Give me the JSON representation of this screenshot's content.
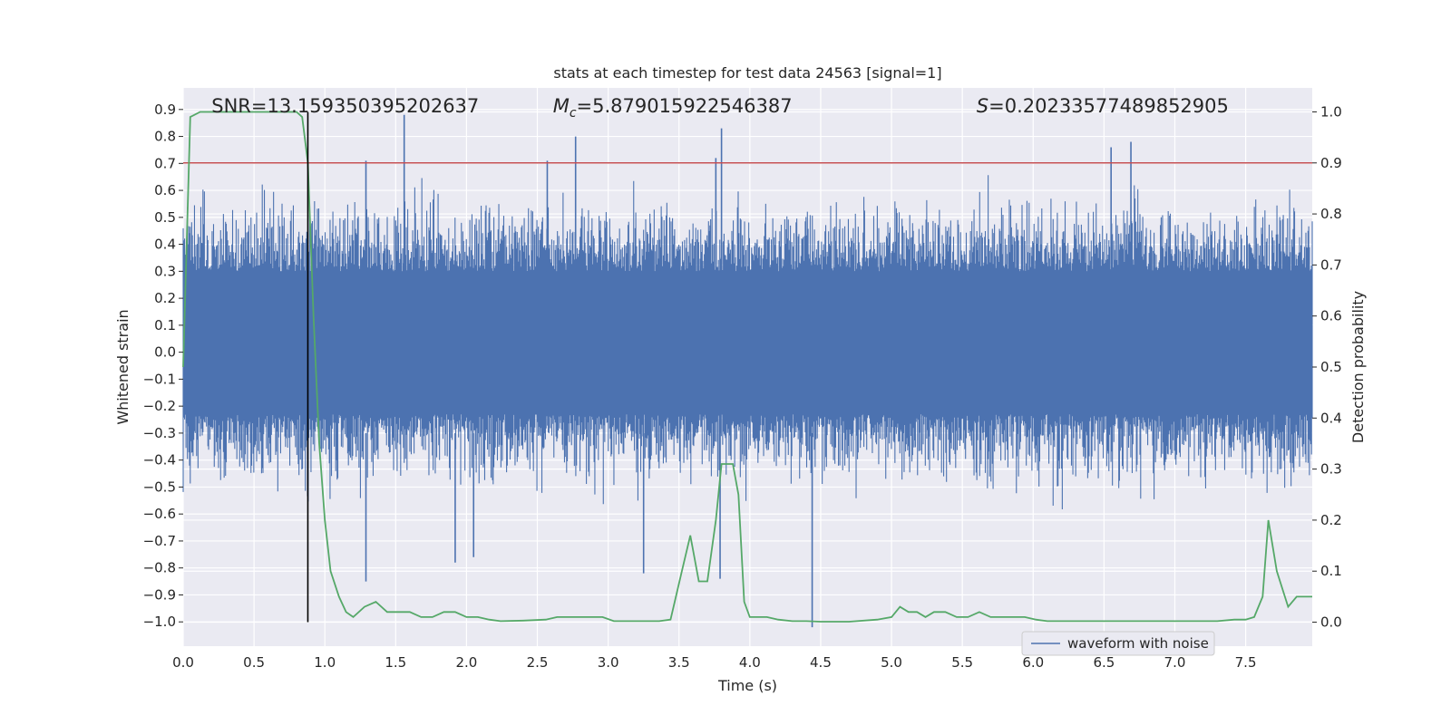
{
  "chart_data": {
    "type": "line",
    "title": "stats at each timestep for test data 24563 [signal=1]",
    "xlabel": "Time (s)",
    "ylabel": "Whitened strain",
    "y2label": "Detection probability",
    "xlim": [
      0.0,
      7.97
    ],
    "ylim": [
      -1.09,
      0.98
    ],
    "y2lim": [
      -0.047,
      1.047
    ],
    "xticks": [
      "0.0",
      "0.5",
      "1.0",
      "1.5",
      "2.0",
      "2.5",
      "3.0",
      "3.5",
      "4.0",
      "4.5",
      "5.0",
      "5.5",
      "6.0",
      "6.5",
      "7.0",
      "7.5"
    ],
    "xtick_values": [
      0.0,
      0.5,
      1.0,
      1.5,
      2.0,
      2.5,
      3.0,
      3.5,
      4.0,
      4.5,
      5.0,
      5.5,
      6.0,
      6.5,
      7.0,
      7.5
    ],
    "yticks": [
      "0.9",
      "0.8",
      "0.7",
      "0.6",
      "0.5",
      "0.4",
      "0.3",
      "0.2",
      "0.1",
      "0.0",
      "−0.1",
      "−0.2",
      "−0.3",
      "−0.4",
      "−0.5",
      "−0.6",
      "−0.7",
      "−0.8",
      "−0.9",
      "−1.0"
    ],
    "ytick_values": [
      0.9,
      0.8,
      0.7,
      0.6,
      0.5,
      0.4,
      0.3,
      0.2,
      0.1,
      0.0,
      -0.1,
      -0.2,
      -0.3,
      -0.4,
      -0.5,
      -0.6,
      -0.7,
      -0.8,
      -0.9,
      -1.0
    ],
    "y2ticks": [
      "1.0",
      "0.9",
      "0.8",
      "0.7",
      "0.6",
      "0.5",
      "0.4",
      "0.3",
      "0.2",
      "0.1",
      "0.0"
    ],
    "y2tick_values": [
      1.0,
      0.9,
      0.8,
      0.7,
      0.6,
      0.5,
      0.4,
      0.3,
      0.2,
      0.1,
      0.0
    ],
    "annotations": {
      "snr": "SNR=13.159350395202637",
      "mc_symbol": "M",
      "mc_sub": "c",
      "mc_value": "=5.879015922546387",
      "s_symbol": "S",
      "s_value": "=0.20233577489852905"
    },
    "threshold": {
      "value": 0.9,
      "axis": "right",
      "color": "#c44e52"
    },
    "detection_time": {
      "x": 0.88,
      "color": "#000000"
    },
    "series": [
      {
        "name": "waveform with noise",
        "axis": "left",
        "color": "#4c72b0",
        "kind": "noise",
        "envelope_upper": [
          0.3,
          0.33
        ],
        "envelope_lower": [
          -0.23,
          -0.26
        ],
        "peaks": [
          {
            "x": 1.29,
            "y": 0.71
          },
          {
            "x": 1.56,
            "y": 0.88
          },
          {
            "x": 2.77,
            "y": 0.8
          },
          {
            "x": 3.8,
            "y": 0.83
          },
          {
            "x": 3.76,
            "y": 0.72
          },
          {
            "x": 6.69,
            "y": 0.78
          },
          {
            "x": 6.55,
            "y": 0.76
          },
          {
            "x": 2.57,
            "y": 0.71
          }
        ],
        "troughs": [
          {
            "x": 1.29,
            "y": -0.85
          },
          {
            "x": 4.44,
            "y": -1.02
          },
          {
            "x": 3.25,
            "y": -0.82
          },
          {
            "x": 3.79,
            "y": -0.84
          },
          {
            "x": 1.92,
            "y": -0.78
          },
          {
            "x": 2.05,
            "y": -0.76
          }
        ]
      },
      {
        "name": "detection probability",
        "axis": "right",
        "color": "#55a868",
        "x": [
          0.0,
          0.05,
          0.12,
          0.2,
          0.3,
          0.4,
          0.5,
          0.6,
          0.7,
          0.8,
          0.84,
          0.88,
          0.92,
          0.96,
          1.0,
          1.04,
          1.1,
          1.15,
          1.2,
          1.28,
          1.36,
          1.44,
          1.52,
          1.6,
          1.68,
          1.76,
          1.84,
          1.92,
          2.0,
          2.08,
          2.16,
          2.24,
          2.4,
          2.56,
          2.64,
          2.72,
          2.8,
          2.88,
          2.96,
          3.04,
          3.2,
          3.36,
          3.44,
          3.52,
          3.58,
          3.64,
          3.7,
          3.76,
          3.8,
          3.84,
          3.88,
          3.92,
          3.96,
          4.0,
          4.05,
          4.12,
          4.2,
          4.3,
          4.4,
          4.5,
          4.7,
          4.9,
          5.0,
          5.06,
          5.12,
          5.18,
          5.24,
          5.3,
          5.38,
          5.46,
          5.54,
          5.62,
          5.7,
          5.8,
          5.86,
          5.94,
          6.02,
          6.1,
          6.3,
          6.5,
          6.7,
          6.9,
          7.1,
          7.3,
          7.42,
          7.5,
          7.56,
          7.62,
          7.66,
          7.72,
          7.8,
          7.86,
          7.93,
          7.97
        ],
        "y": [
          0.5,
          0.99,
          1.0,
          1.0,
          1.0,
          1.0,
          1.0,
          1.0,
          1.0,
          1.0,
          0.99,
          0.9,
          0.6,
          0.35,
          0.2,
          0.1,
          0.05,
          0.02,
          0.01,
          0.03,
          0.04,
          0.02,
          0.02,
          0.02,
          0.01,
          0.01,
          0.02,
          0.02,
          0.01,
          0.01,
          0.005,
          0.002,
          0.003,
          0.005,
          0.01,
          0.01,
          0.01,
          0.01,
          0.01,
          0.002,
          0.002,
          0.002,
          0.005,
          0.1,
          0.17,
          0.08,
          0.08,
          0.2,
          0.31,
          0.31,
          0.31,
          0.25,
          0.04,
          0.01,
          0.01,
          0.01,
          0.005,
          0.002,
          0.002,
          0.001,
          0.001,
          0.005,
          0.01,
          0.03,
          0.02,
          0.02,
          0.01,
          0.02,
          0.02,
          0.01,
          0.01,
          0.02,
          0.01,
          0.01,
          0.01,
          0.01,
          0.005,
          0.002,
          0.002,
          0.002,
          0.002,
          0.002,
          0.002,
          0.002,
          0.005,
          0.005,
          0.01,
          0.05,
          0.2,
          0.1,
          0.03,
          0.05,
          0.05,
          0.05
        ]
      }
    ],
    "legend": {
      "placement": "bottom-right",
      "entries": [
        "waveform with noise"
      ]
    }
  }
}
